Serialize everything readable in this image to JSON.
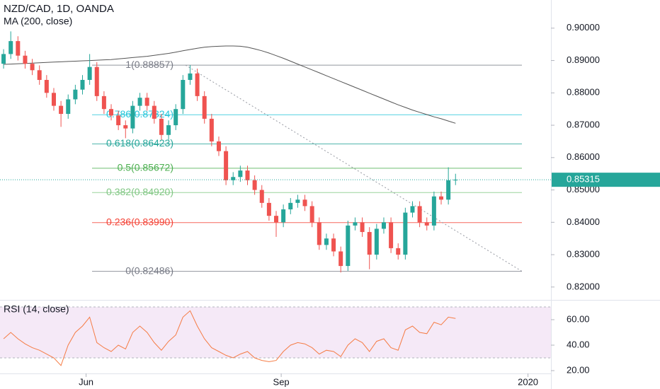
{
  "chart_data": [
    {
      "type": "candlestick",
      "title": "NZD/CAD, 1D, OANDA",
      "up_color": "#26a69a",
      "down_color": "#ef5350",
      "open": [
        0.889,
        0.892,
        0.896,
        0.8915,
        0.889,
        0.887,
        0.884,
        0.88,
        0.876,
        0.8735,
        0.878,
        0.881,
        0.884,
        0.888,
        0.879,
        0.875,
        0.873,
        0.87,
        0.869,
        0.876,
        0.8785,
        0.876,
        0.872,
        0.867,
        0.87,
        0.875,
        0.884,
        0.886,
        0.879,
        0.872,
        0.865,
        0.862,
        0.853,
        0.854,
        0.856,
        0.853,
        0.85,
        0.846,
        0.842,
        0.84,
        0.844,
        0.846,
        0.847,
        0.845,
        0.84,
        0.833,
        0.835,
        0.831,
        0.8265,
        0.839,
        0.84,
        0.837,
        0.83,
        0.838,
        0.84,
        0.832,
        0.83,
        0.843,
        0.845,
        0.84,
        0.839,
        0.848,
        0.847,
        0.853
      ],
      "high": [
        0.8935,
        0.899,
        0.8975,
        0.893,
        0.8905,
        0.8885,
        0.8855,
        0.8815,
        0.8775,
        0.8795,
        0.8825,
        0.8855,
        0.892,
        0.8895,
        0.8805,
        0.8765,
        0.8745,
        0.8715,
        0.8775,
        0.88,
        0.88,
        0.8775,
        0.8735,
        0.8715,
        0.8765,
        0.8855,
        0.8886,
        0.8875,
        0.8805,
        0.8735,
        0.8665,
        0.8635,
        0.8555,
        0.8575,
        0.8575,
        0.8545,
        0.8515,
        0.8475,
        0.8435,
        0.8455,
        0.8475,
        0.8485,
        0.8485,
        0.8465,
        0.8415,
        0.8365,
        0.8365,
        0.8325,
        0.8405,
        0.8415,
        0.8415,
        0.8385,
        0.8395,
        0.8415,
        0.8415,
        0.8335,
        0.8445,
        0.8465,
        0.8465,
        0.8415,
        0.8495,
        0.8495,
        0.857,
        0.855
      ],
      "low": [
        0.8875,
        0.8905,
        0.89,
        0.8875,
        0.8855,
        0.8825,
        0.8785,
        0.8745,
        0.8695,
        0.872,
        0.8765,
        0.8795,
        0.8825,
        0.8775,
        0.8735,
        0.8715,
        0.8685,
        0.866,
        0.8675,
        0.8745,
        0.8745,
        0.8705,
        0.8655,
        0.8655,
        0.8685,
        0.8735,
        0.8825,
        0.8775,
        0.8705,
        0.8635,
        0.8605,
        0.8515,
        0.8515,
        0.8525,
        0.8515,
        0.8485,
        0.8445,
        0.8405,
        0.8355,
        0.8385,
        0.8425,
        0.8445,
        0.8435,
        0.8385,
        0.8315,
        0.8315,
        0.8295,
        0.8245,
        0.825,
        0.8375,
        0.8355,
        0.8255,
        0.8285,
        0.8365,
        0.8305,
        0.8285,
        0.8285,
        0.8415,
        0.8385,
        0.8375,
        0.8375,
        0.8455,
        0.8455,
        0.8515
      ],
      "close": [
        0.892,
        0.896,
        0.8915,
        0.889,
        0.887,
        0.884,
        0.88,
        0.876,
        0.8735,
        0.878,
        0.881,
        0.884,
        0.888,
        0.879,
        0.875,
        0.873,
        0.87,
        0.869,
        0.876,
        0.8785,
        0.876,
        0.872,
        0.867,
        0.87,
        0.875,
        0.884,
        0.886,
        0.879,
        0.872,
        0.865,
        0.862,
        0.853,
        0.854,
        0.856,
        0.853,
        0.85,
        0.846,
        0.842,
        0.84,
        0.844,
        0.846,
        0.847,
        0.845,
        0.84,
        0.833,
        0.835,
        0.831,
        0.8265,
        0.839,
        0.84,
        0.837,
        0.83,
        0.838,
        0.84,
        0.832,
        0.83,
        0.843,
        0.845,
        0.84,
        0.839,
        0.848,
        0.847,
        0.853,
        0.85315
      ],
      "series": [
        {
          "name": "MA (200, close)",
          "color": "#555555",
          "values": [
            0.8888,
            0.8889,
            0.889,
            0.8891,
            0.8892,
            0.8893,
            0.8894,
            0.8895,
            0.8896,
            0.8897,
            0.8898,
            0.8899,
            0.89,
            0.8901,
            0.8902,
            0.8903,
            0.8905,
            0.8907,
            0.8909,
            0.8911,
            0.8913,
            0.8916,
            0.8919,
            0.8922,
            0.8926,
            0.893,
            0.8934,
            0.8938,
            0.8941,
            0.8943,
            0.8944,
            0.8945,
            0.8945,
            0.8944,
            0.8941,
            0.8936,
            0.893,
            0.8923,
            0.8915,
            0.8907,
            0.8898,
            0.8889,
            0.888,
            0.8871,
            0.8862,
            0.8853,
            0.8844,
            0.8835,
            0.8826,
            0.8817,
            0.8808,
            0.8799,
            0.879,
            0.8781,
            0.8772,
            0.8763,
            0.8755,
            0.8747,
            0.874,
            0.8733,
            0.8726,
            0.872,
            0.8713,
            0.8706
          ]
        }
      ],
      "fib_levels": [
        {
          "label": "1(0.88857)",
          "value": 0.88857,
          "color": "#787b86"
        },
        {
          "label": "0.786(0.87324)",
          "value": 0.87324,
          "color": "#26c6da"
        },
        {
          "label": "0.618(0.86423)",
          "value": 0.86423,
          "color": "#26a69a"
        },
        {
          "label": "0.5(0.85672)",
          "value": 0.85672,
          "color": "#4caf50"
        },
        {
          "label": "0.382(0.84920)",
          "value": 0.8492,
          "color": "#81c784"
        },
        {
          "label": "0.236(0.83990)",
          "value": 0.8399,
          "color": "#f44336"
        },
        {
          "label": "0(0.82486)",
          "value": 0.82486,
          "color": "#787b86"
        }
      ],
      "last_price": 0.85315,
      "ylim": [
        0.8169,
        0.9087
      ],
      "yticks": [
        {
          "value": 0.82,
          "label": "0.82000"
        },
        {
          "value": 0.83,
          "label": "0.83000"
        },
        {
          "value": 0.84,
          "label": "0.84000"
        },
        {
          "value": 0.85,
          "label": "0.85000"
        },
        {
          "value": 0.86,
          "label": "0.86000"
        },
        {
          "value": 0.87,
          "label": "0.87000"
        },
        {
          "value": 0.88,
          "label": "0.88000"
        },
        {
          "value": 0.89,
          "label": "0.89000"
        },
        {
          "value": 0.9,
          "label": "0.90000"
        }
      ],
      "xlim": [
        -0.5,
        76.3
      ],
      "xticks": [
        {
          "value": 11.5,
          "label": "Jun"
        },
        {
          "value": 38.7,
          "label": "Sep"
        },
        {
          "value": 73.1,
          "label": "2020"
        }
      ]
    },
    {
      "type": "line",
      "title": "RSI (14, close)",
      "color": "#f57c45",
      "values": [
        45,
        50,
        45,
        41,
        38,
        36,
        33,
        30,
        24,
        40,
        50,
        55,
        62,
        42,
        38,
        35,
        40,
        37,
        50,
        55,
        50,
        42,
        36,
        43,
        48,
        62,
        67,
        55,
        45,
        38,
        35,
        32,
        30,
        33,
        35,
        30,
        28,
        27,
        28,
        35,
        40,
        42,
        41,
        38,
        33,
        36,
        35,
        31,
        40,
        45,
        42,
        35,
        43,
        45,
        38,
        36,
        52,
        55,
        50,
        49,
        58,
        56,
        62,
        61
      ],
      "band": [
        30,
        70
      ],
      "band_color": "#9c27b0",
      "ylim": [
        17.8,
        73.3
      ],
      "yticks": [
        {
          "value": 20,
          "label": "20.00"
        },
        {
          "value": 40,
          "label": "40.00"
        },
        {
          "value": 60,
          "label": "60.00"
        }
      ]
    }
  ]
}
